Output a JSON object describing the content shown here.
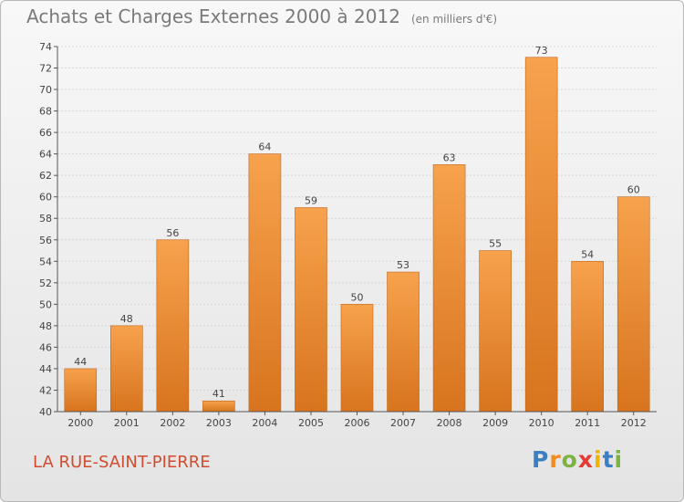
{
  "chart_data": {
    "type": "bar",
    "title": "Achats et Charges Externes 2000 à 2012",
    "unit_label": "(en milliers d'€)",
    "categories": [
      "2000",
      "2001",
      "2002",
      "2003",
      "2004",
      "2005",
      "2006",
      "2007",
      "2008",
      "2009",
      "2010",
      "2011",
      "2012"
    ],
    "values": [
      44,
      48,
      56,
      41,
      64,
      59,
      50,
      53,
      63,
      55,
      73,
      54,
      60
    ],
    "ylim": [
      40,
      74
    ],
    "yticks": [
      40,
      42,
      44,
      46,
      48,
      50,
      52,
      54,
      56,
      58,
      60,
      62,
      64,
      66,
      68,
      70,
      72,
      74
    ],
    "grid": true,
    "bar_color_top": "#f7a24d",
    "bar_color_bottom": "#d8741e"
  },
  "commune": "LA RUE-SAINT-PIERRE",
  "logo": {
    "letters": [
      "P",
      "r",
      "o",
      "x",
      "i",
      "t",
      "i"
    ],
    "colors": [
      "#3a7fc4",
      "#f08c22",
      "#7cb342",
      "#e53935",
      "#f0b400",
      "#3a7fc4",
      "#7cb342"
    ]
  }
}
